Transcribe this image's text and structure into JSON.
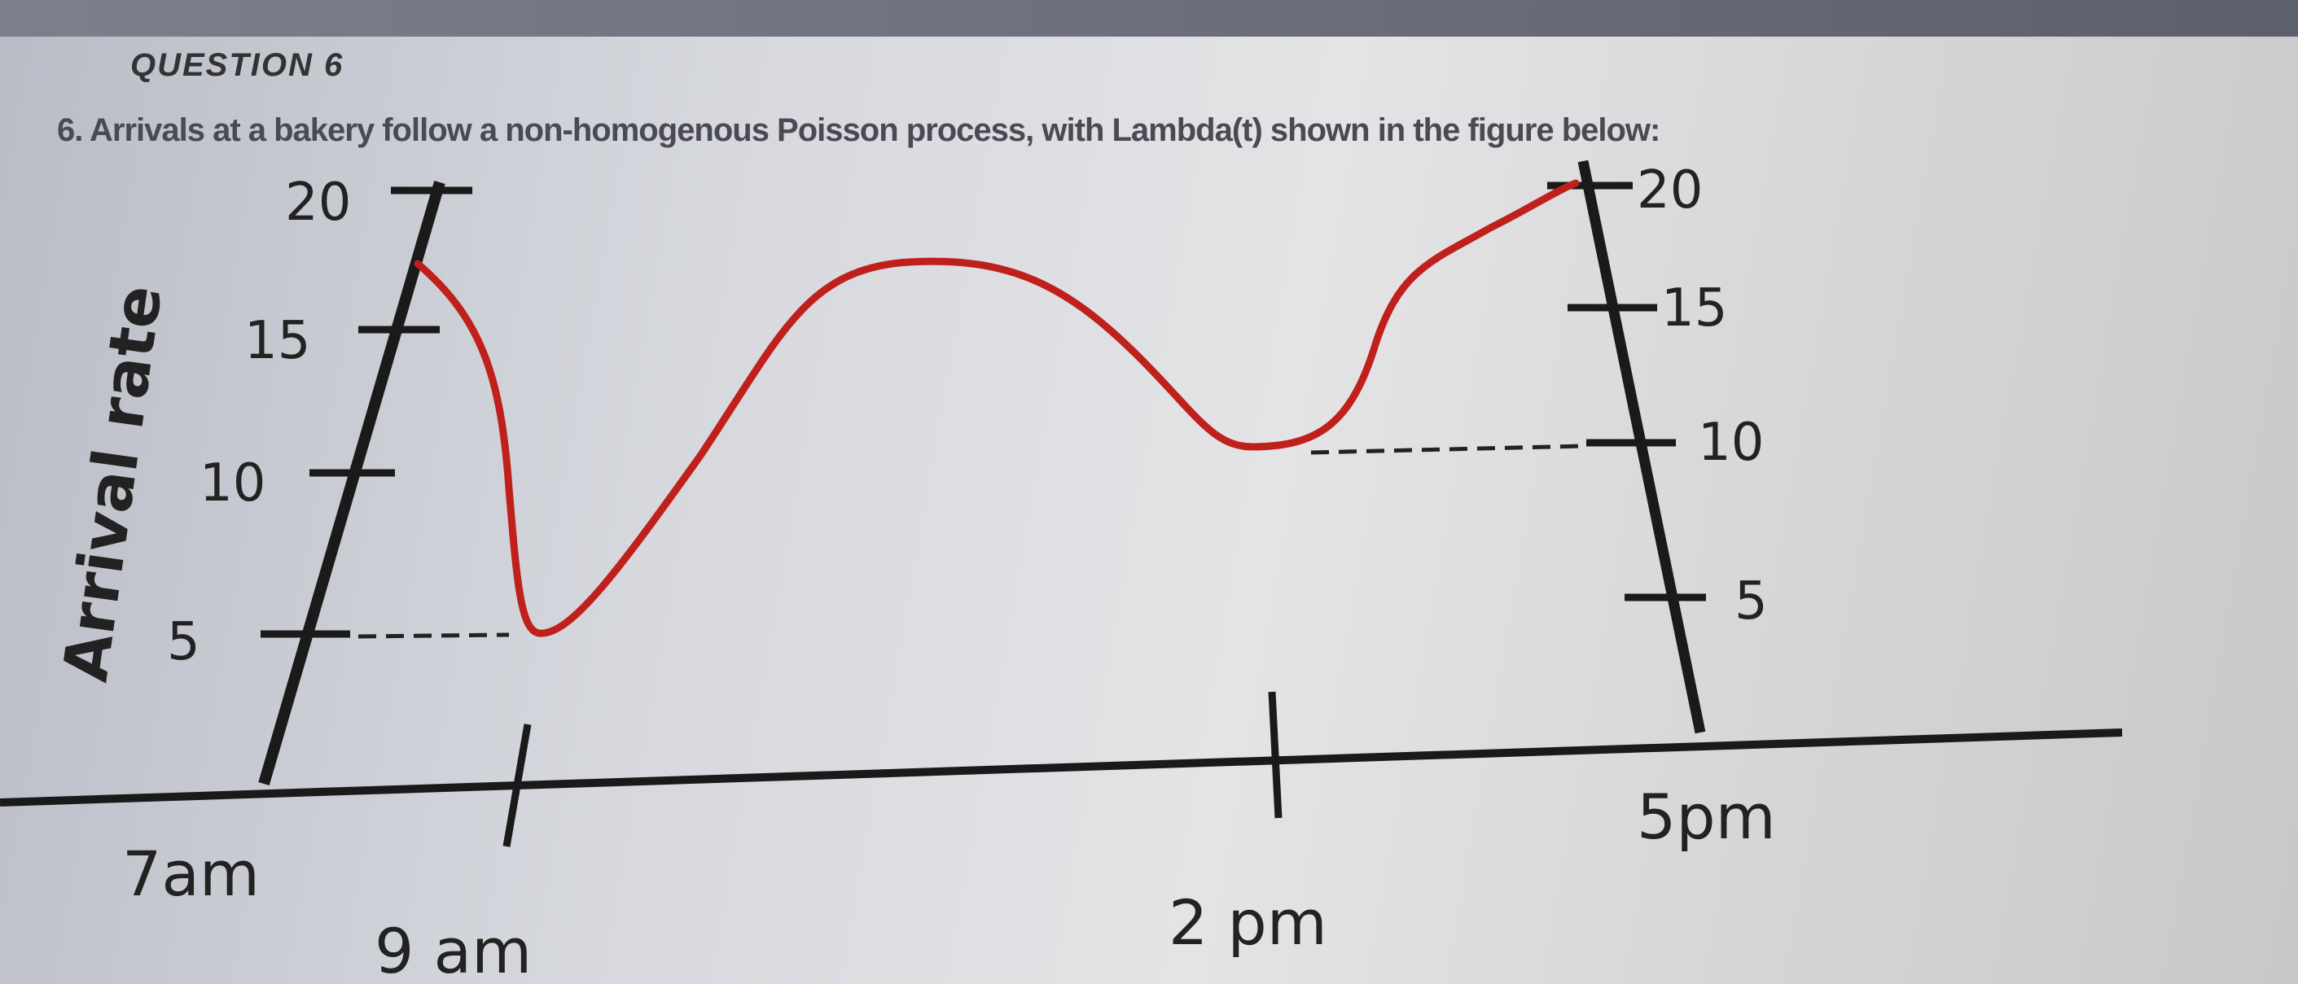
{
  "question": {
    "heading": "QUESTION 6",
    "text": "6. Arrivals at a bakery follow a non-homogenous Poisson process, with Lambda(t) shown in the figure below:"
  },
  "chart_data": {
    "type": "line",
    "title": "",
    "xlabel": "",
    "ylabel": "Arrival rate",
    "x_tick_labels": [
      "7am",
      "9 am",
      "2 pm",
      "5pm"
    ],
    "y_tick_labels_left": [
      "5",
      "10",
      "15",
      "20"
    ],
    "y_tick_labels_right": [
      "5",
      "10",
      "15",
      "20"
    ],
    "ylim": [
      0,
      20
    ],
    "series": [
      {
        "x": [
          "7am",
          "9am",
          "11am",
          "2pm",
          "5pm"
        ],
        "y": [
          17,
          5,
          17,
          10,
          20
        ],
        "color": "#c0201c"
      }
    ],
    "reference_lines": [
      {
        "style": "dashed",
        "value": 5,
        "at": "9am"
      },
      {
        "style": "dashed",
        "value": 10,
        "at": "2pm"
      }
    ],
    "grid": false
  }
}
